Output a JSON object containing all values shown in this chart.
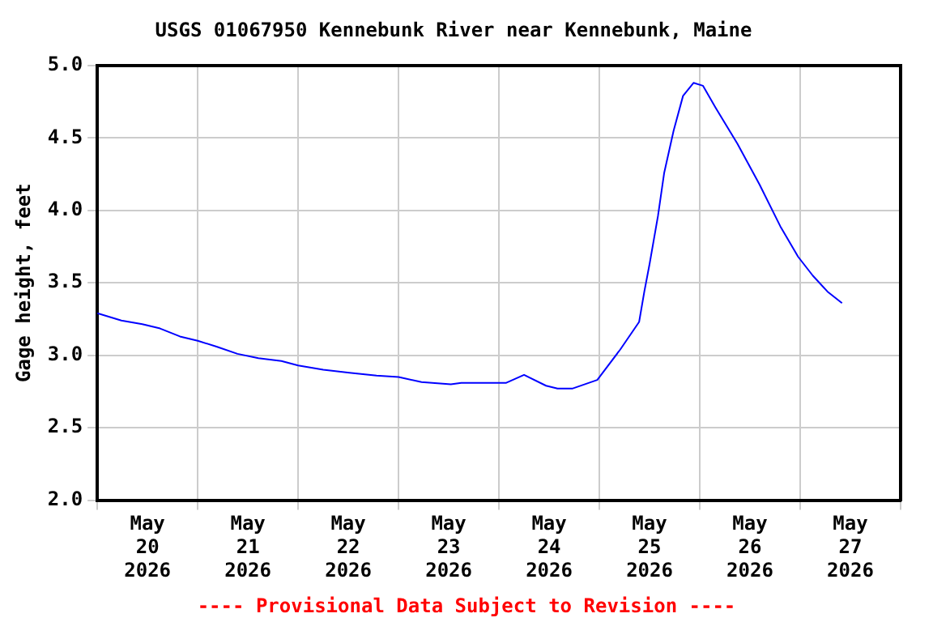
{
  "chart_data": {
    "type": "line",
    "title": "USGS 01067950 Kennebunk River near Kennebunk, Maine",
    "ylabel": "Gage height, feet",
    "annotations": [
      "---- Provisional Data Subject to Revision ----"
    ],
    "xlim": [
      "2026-05-20T00:00",
      "2026-05-28T00:00"
    ],
    "xticks": [
      {
        "value": "2026-05-20T00:00",
        "label": null
      },
      {
        "value": "2026-05-20T12:00",
        "label": "May\n20\n2026"
      },
      {
        "value": "2026-05-21T00:00",
        "label": null
      },
      {
        "value": "2026-05-21T12:00",
        "label": "May\n21\n2026"
      },
      {
        "value": "2026-05-22T00:00",
        "label": null
      },
      {
        "value": "2026-05-22T12:00",
        "label": "May\n22\n2026"
      },
      {
        "value": "2026-05-23T00:00",
        "label": null
      },
      {
        "value": "2026-05-23T12:00",
        "label": "May\n23\n2026"
      },
      {
        "value": "2026-05-24T00:00",
        "label": null
      },
      {
        "value": "2026-05-24T12:00",
        "label": "May\n24\n2026"
      },
      {
        "value": "2026-05-25T00:00",
        "label": null
      },
      {
        "value": "2026-05-25T12:00",
        "label": "May\n25\n2026"
      },
      {
        "value": "2026-05-26T00:00",
        "label": null
      },
      {
        "value": "2026-05-26T12:00",
        "label": "May\n26\n2026"
      },
      {
        "value": "2026-05-27T00:00",
        "label": null
      },
      {
        "value": "2026-05-27T12:00",
        "label": "May\n27\n2026"
      },
      {
        "value": "2026-05-28T00:00",
        "label": null
      }
    ],
    "ylim": [
      2.0,
      5.0
    ],
    "yticks": [
      {
        "value": 2.0,
        "label": "2.0"
      },
      {
        "value": 2.5,
        "label": "2.5"
      },
      {
        "value": 3.0,
        "label": "3.0"
      },
      {
        "value": 3.5,
        "label": "3.5"
      },
      {
        "value": 4.0,
        "label": "4.0"
      },
      {
        "value": 4.5,
        "label": "4.5"
      },
      {
        "value": 5.0,
        "label": "5.0"
      }
    ],
    "grid": true,
    "marker": "none",
    "line_style": "solid",
    "series": [
      {
        "color": "#0000ff",
        "x": [
          "2026-05-20T00:00",
          "2026-05-20T05:45",
          "2026-05-20T10:45",
          "2026-05-20T15:00",
          "2026-05-20T19:45",
          "2026-05-21T00:00",
          "2026-05-21T04:30",
          "2026-05-21T09:30",
          "2026-05-21T14:30",
          "2026-05-21T20:00",
          "2026-05-22T00:00",
          "2026-05-22T06:00",
          "2026-05-22T12:15",
          "2026-05-22T18:45",
          "2026-05-23T00:00",
          "2026-05-23T05:30",
          "2026-05-23T12:30",
          "2026-05-23T15:00",
          "2026-05-24T00:00",
          "2026-05-24T01:45",
          "2026-05-24T06:00",
          "2026-05-24T11:15",
          "2026-05-24T14:00",
          "2026-05-24T17:30",
          "2026-05-24T23:30",
          "2026-05-25T05:00",
          "2026-05-25T09:30",
          "2026-05-25T10:45",
          "2026-05-25T12:00",
          "2026-05-25T14:00",
          "2026-05-25T15:30",
          "2026-05-25T17:45",
          "2026-05-25T20:00",
          "2026-05-25T22:30",
          "2026-05-26T00:45",
          "2026-05-26T03:45",
          "2026-05-26T09:00",
          "2026-05-26T14:15",
          "2026-05-26T19:15",
          "2026-05-26T23:30",
          "2026-05-27T03:00",
          "2026-05-27T06:30",
          "2026-05-27T10:00"
        ],
        "values": [
          3.29,
          3.24,
          3.215,
          3.185,
          3.13,
          3.1,
          3.06,
          3.01,
          2.98,
          2.96,
          2.93,
          2.9,
          2.88,
          2.86,
          2.85,
          2.815,
          2.8,
          2.81,
          2.81,
          2.81,
          2.865,
          2.79,
          2.77,
          2.77,
          2.83,
          3.04,
          3.23,
          3.44,
          3.63,
          3.96,
          4.26,
          4.55,
          4.79,
          4.88,
          4.86,
          4.71,
          4.46,
          4.18,
          3.89,
          3.68,
          3.55,
          3.44,
          3.36
        ]
      }
    ]
  }
}
